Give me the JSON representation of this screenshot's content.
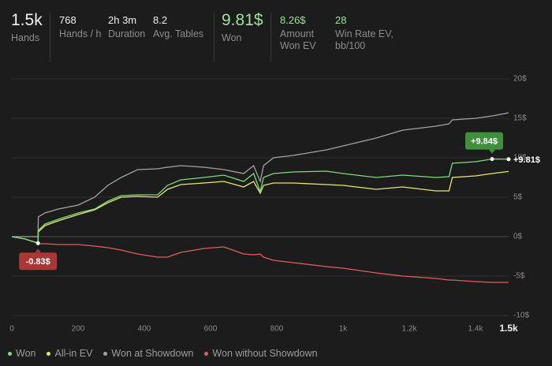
{
  "stats": [
    {
      "value": "1.5k",
      "label": "Hands"
    },
    {
      "value": "768",
      "label": "Hands / h"
    },
    {
      "value": "2h 3m",
      "label": "Duration"
    },
    {
      "value": "8.2",
      "label": "Avg. Tables"
    },
    {
      "value": "9.81$",
      "label": "Won"
    },
    {
      "value": "8.26$",
      "label": "Amount Won EV"
    },
    {
      "value": "28",
      "label": "Win Rate EV, bb/100"
    }
  ],
  "chart_data": {
    "type": "line",
    "x": [
      0,
      40,
      79,
      80,
      100,
      140,
      200,
      250,
      290,
      330,
      380,
      440,
      470,
      510,
      580,
      640,
      700,
      730,
      750,
      760,
      790,
      850,
      950,
      1000,
      1100,
      1180,
      1280,
      1320,
      1330,
      1400,
      1450,
      1500
    ],
    "series": [
      {
        "name": "Won",
        "color": "#7ddc7a",
        "values": [
          0,
          -0.3,
          -0.83,
          0.8,
          1.6,
          2.2,
          3.0,
          3.5,
          4.5,
          5.2,
          5.3,
          5.3,
          6.5,
          7.2,
          7.5,
          7.8,
          7.0,
          8.0,
          5.7,
          7.5,
          8.0,
          8.2,
          8.3,
          8.0,
          7.5,
          7.8,
          7.5,
          7.6,
          9.3,
          9.5,
          9.84,
          9.81
        ]
      },
      {
        "name": "All-in EV",
        "color": "#e6e66e",
        "values": [
          0,
          -0.3,
          -0.83,
          0.6,
          1.4,
          2.0,
          2.8,
          3.4,
          4.3,
          5.0,
          5.1,
          5.0,
          6.0,
          6.6,
          6.8,
          7.0,
          6.3,
          7.0,
          5.5,
          6.5,
          6.8,
          6.8,
          6.6,
          6.5,
          6.0,
          6.3,
          5.8,
          5.8,
          7.5,
          7.7,
          8.0,
          8.26
        ]
      },
      {
        "name": "Won at Showdown",
        "color": "#a3a3a3",
        "values": [
          0,
          0,
          0,
          2.5,
          3.0,
          3.5,
          4.0,
          5.0,
          6.5,
          7.5,
          8.5,
          8.6,
          8.8,
          9.0,
          8.8,
          8.5,
          8.0,
          9.0,
          7.0,
          9.0,
          10.0,
          10.3,
          11.0,
          11.5,
          12.5,
          13.5,
          14.0,
          14.3,
          14.8,
          15.0,
          15.3,
          15.7
        ]
      },
      {
        "name": "Won without Showdown",
        "color": "#e35d5d",
        "values": [
          0,
          -0.3,
          -0.83,
          -0.9,
          -0.9,
          -1.0,
          -1.0,
          -1.2,
          -1.4,
          -1.7,
          -2.2,
          -2.6,
          -2.6,
          -2.0,
          -1.5,
          -1.3,
          -2.2,
          -2.3,
          -2.2,
          -2.6,
          -3.0,
          -3.3,
          -3.8,
          -4.0,
          -4.6,
          -5.0,
          -5.3,
          -5.5,
          -5.5,
          -5.7,
          -5.8,
          -5.8
        ]
      }
    ],
    "xlim": [
      0,
      1500
    ],
    "xticks": [
      0,
      200,
      400,
      600,
      800,
      {
        "value": 1000,
        "label": "1k"
      },
      {
        "value": 1200,
        "label": "1.2k"
      },
      {
        "value": 1400,
        "label": "1.4k"
      },
      {
        "value": 1500,
        "label": "1.5k"
      }
    ],
    "ylim": [
      -10,
      20
    ],
    "yticks": [
      {
        "value": 20,
        "label": "20$"
      },
      {
        "value": 15,
        "label": "15$"
      },
      {
        "value": 10,
        "label": "10$"
      },
      {
        "value": 5,
        "label": "5$"
      },
      {
        "value": 0,
        "label": "0$"
      },
      {
        "value": -5,
        "label": "-5$"
      },
      {
        "value": -10,
        "label": "-10$"
      }
    ],
    "grid": true,
    "annotations": [
      {
        "label": "-0.83$",
        "x": 79,
        "value": -0.83,
        "color": "#a83838",
        "position": "below"
      },
      {
        "label": "+9.84$",
        "x": 1450,
        "value": 9.84,
        "color": "#3f8f3c",
        "position": "above"
      },
      {
        "label": "+9.81$",
        "x": 1500,
        "value": 9.81,
        "position": "right"
      }
    ]
  }
}
